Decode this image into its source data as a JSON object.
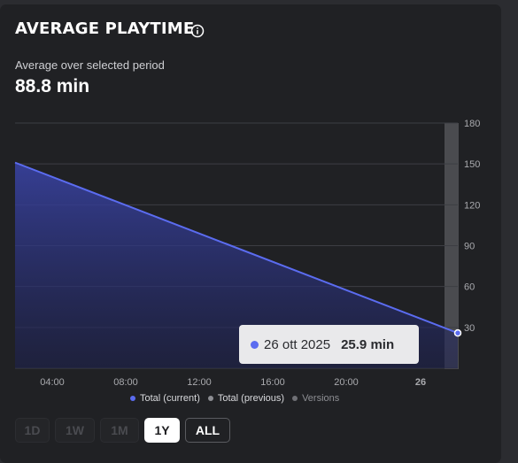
{
  "widget": {
    "title": "AVERAGE PLAYTIME",
    "info_icon": "info-circle-icon",
    "subtitle": "Average over selected period",
    "metric": "88.8 min"
  },
  "chart_data": {
    "type": "area",
    "x_tick_labels": [
      "04:00",
      "08:00",
      "12:00",
      "16:00",
      "20:00",
      "26"
    ],
    "y_ticks": [
      30,
      60,
      90,
      120,
      150,
      180
    ],
    "ylim": [
      0,
      180
    ],
    "grid": true,
    "series": [
      {
        "name": "Total (current)",
        "color": "#5b6cf0",
        "points": [
          {
            "x": "start",
            "y": 151
          },
          {
            "x": "26 ott 2025",
            "y": 25.9
          }
        ]
      }
    ],
    "highlighted_point": {
      "label": "26 ott 2025",
      "value": "25.9 min"
    }
  },
  "legend": {
    "items": [
      {
        "label": "Total (current)",
        "color": "#5b6cf0"
      },
      {
        "label": "Total (previous)",
        "color": "#8d8e93"
      },
      {
        "label": "Versions",
        "color": "#6f7075"
      }
    ]
  },
  "ranges": {
    "buttons": [
      "1D",
      "1W",
      "1M",
      "1Y",
      "ALL"
    ],
    "selected": "1Y"
  }
}
